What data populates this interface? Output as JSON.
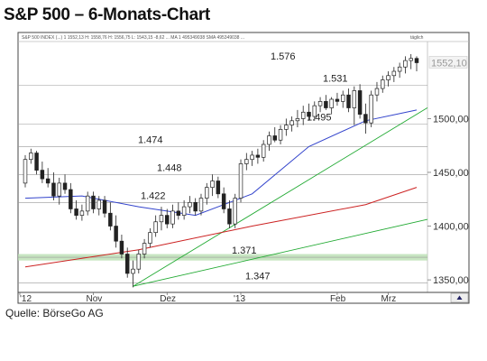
{
  "title": "S&P 500 – 6-Monats-Chart",
  "source": "Quelle: BörseGo AG",
  "header": {
    "info": "S&P 500 INDEX (...) 1 1552,13  H: 1558,76  H: 1556,75  L: 1543,15  -8,62  ...  MA 1 495349038  SMA 495349038  ...",
    "right": "täglich"
  },
  "nav_icon": "arrow-up-icon",
  "colors": {
    "candle": "#222222",
    "ma_short": "#3344cc",
    "ma_mid": "#cc2222",
    "trend": "#22aa33",
    "support_band": "#b9dfb2",
    "level_line": "#999999",
    "frame": "#444444"
  },
  "chart_data": {
    "type": "candlestick",
    "title": "S&P 500 – 6-Monats-Chart",
    "ylim": [
      1340,
      1565
    ],
    "y_ticks": [
      "1350,00",
      "1400,00",
      "1450,00",
      "1500,00"
    ],
    "x_ticks": [
      "'12",
      "Nov",
      "Dez",
      "'13",
      "Feb",
      "Mrz"
    ],
    "last_price_label": "1552,10",
    "last_price": 1552.1,
    "levels": [
      {
        "label": "1.576",
        "value": 1576
      },
      {
        "label": "1.531",
        "value": 1531
      },
      {
        "label": "1.495",
        "value": 1495
      },
      {
        "label": "1.474",
        "value": 1474
      },
      {
        "label": "1.448",
        "value": 1448
      },
      {
        "label": "1.422",
        "value": 1422
      },
      {
        "label": "1.371",
        "value": 1371
      },
      {
        "label": "1.347",
        "value": 1347
      }
    ],
    "candles": [
      [
        1440,
        1466,
        1436,
        1462
      ],
      [
        1462,
        1472,
        1458,
        1468
      ],
      [
        1468,
        1470,
        1448,
        1452
      ],
      [
        1452,
        1460,
        1440,
        1444
      ],
      [
        1444,
        1454,
        1436,
        1440
      ],
      [
        1440,
        1450,
        1424,
        1428
      ],
      [
        1428,
        1445,
        1420,
        1440
      ],
      [
        1440,
        1448,
        1430,
        1434
      ],
      [
        1434,
        1440,
        1412,
        1416
      ],
      [
        1416,
        1424,
        1406,
        1410
      ],
      [
        1410,
        1420,
        1405,
        1414
      ],
      [
        1414,
        1432,
        1410,
        1428
      ],
      [
        1428,
        1432,
        1412,
        1416
      ],
      [
        1416,
        1428,
        1410,
        1424
      ],
      [
        1424,
        1428,
        1408,
        1412
      ],
      [
        1412,
        1422,
        1396,
        1400
      ],
      [
        1400,
        1410,
        1380,
        1386
      ],
      [
        1386,
        1392,
        1370,
        1374
      ],
      [
        1374,
        1380,
        1352,
        1356
      ],
      [
        1356,
        1368,
        1343,
        1360
      ],
      [
        1360,
        1378,
        1356,
        1374
      ],
      [
        1374,
        1388,
        1370,
        1384
      ],
      [
        1384,
        1398,
        1380,
        1394
      ],
      [
        1394,
        1410,
        1390,
        1404
      ],
      [
        1404,
        1418,
        1396,
        1410
      ],
      [
        1410,
        1416,
        1398,
        1402
      ],
      [
        1402,
        1420,
        1398,
        1414
      ],
      [
        1414,
        1422,
        1406,
        1410
      ],
      [
        1410,
        1424,
        1406,
        1418
      ],
      [
        1418,
        1428,
        1412,
        1422
      ],
      [
        1422,
        1426,
        1410,
        1414
      ],
      [
        1414,
        1430,
        1410,
        1426
      ],
      [
        1426,
        1440,
        1420,
        1436
      ],
      [
        1436,
        1448,
        1428,
        1442
      ],
      [
        1442,
        1446,
        1426,
        1430
      ],
      [
        1430,
        1436,
        1412,
        1416
      ],
      [
        1416,
        1424,
        1398,
        1402
      ],
      [
        1402,
        1430,
        1398,
        1426
      ],
      [
        1426,
        1462,
        1422,
        1458
      ],
      [
        1458,
        1468,
        1452,
        1462
      ],
      [
        1462,
        1470,
        1456,
        1466
      ],
      [
        1466,
        1472,
        1458,
        1464
      ],
      [
        1464,
        1480,
        1460,
        1476
      ],
      [
        1476,
        1488,
        1470,
        1484
      ],
      [
        1484,
        1492,
        1478,
        1480
      ],
      [
        1480,
        1494,
        1476,
        1490
      ],
      [
        1490,
        1500,
        1484,
        1494
      ],
      [
        1494,
        1502,
        1488,
        1498
      ],
      [
        1498,
        1508,
        1492,
        1500
      ],
      [
        1500,
        1512,
        1494,
        1506
      ],
      [
        1506,
        1514,
        1498,
        1502
      ],
      [
        1502,
        1516,
        1498,
        1512
      ],
      [
        1512,
        1520,
        1506,
        1516
      ],
      [
        1516,
        1522,
        1508,
        1510
      ],
      [
        1510,
        1520,
        1504,
        1518
      ],
      [
        1518,
        1524,
        1512,
        1516
      ],
      [
        1516,
        1526,
        1510,
        1522
      ],
      [
        1522,
        1528,
        1506,
        1510
      ],
      [
        1510,
        1530,
        1494,
        1526
      ],
      [
        1526,
        1532,
        1500,
        1504
      ],
      [
        1504,
        1514,
        1486,
        1496
      ],
      [
        1496,
        1526,
        1492,
        1522
      ],
      [
        1522,
        1534,
        1516,
        1528
      ],
      [
        1528,
        1540,
        1524,
        1536
      ],
      [
        1536,
        1544,
        1530,
        1540
      ],
      [
        1540,
        1548,
        1534,
        1544
      ],
      [
        1544,
        1552,
        1538,
        1548
      ],
      [
        1548,
        1558,
        1542,
        1554
      ],
      [
        1554,
        1560,
        1546,
        1556
      ],
      [
        1556,
        1558,
        1544,
        1552
      ]
    ],
    "series": [
      {
        "name": "ma_short",
        "x": [
          0,
          10,
          20,
          30,
          40,
          50,
          60,
          69
        ],
        "y": [
          1426,
          1428,
          1418,
          1410,
          1430,
          1474,
          1498,
          1508
        ]
      },
      {
        "name": "ma_mid",
        "x": [
          0,
          20,
          40,
          60,
          69
        ],
        "y": [
          1362,
          1378,
          1400,
          1420,
          1436
        ]
      },
      {
        "name": "trend_up_1",
        "x": [
          19,
          69
        ],
        "y": [
          1344,
          1504
        ]
      },
      {
        "name": "trend_up_2",
        "x": [
          19,
          69
        ],
        "y": [
          1344,
          1404
        ]
      }
    ],
    "grid": false
  }
}
